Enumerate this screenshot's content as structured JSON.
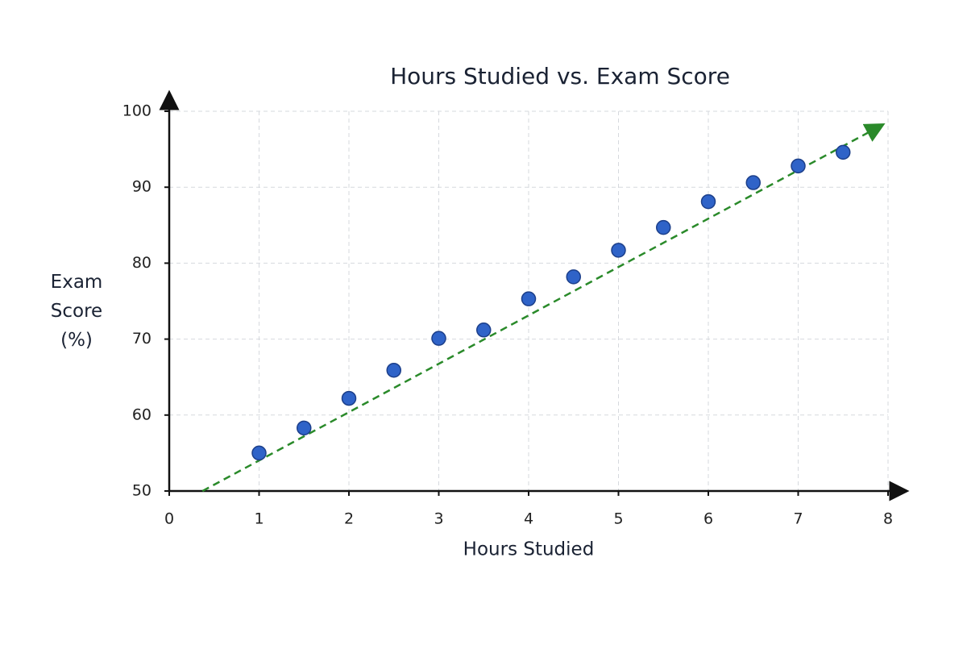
{
  "chart_data": {
    "type": "scatter",
    "title": "Hours Studied vs. Exam Score",
    "x_label": "Hours Studied",
    "y_label": "Exam Score (%)",
    "x": [
      1,
      1.5,
      2,
      2.5,
      3,
      3.5,
      4,
      4.5,
      5,
      5.5,
      6,
      6.5,
      7,
      7.5
    ],
    "values": [
      55.0,
      58.3,
      62.2,
      65.9,
      70.1,
      71.2,
      75.3,
      78.2,
      81.7,
      84.7,
      88.1,
      90.6,
      92.8,
      94.6
    ],
    "color": "#2f63c8",
    "trendline": {
      "x": [
        0.37,
        7.89
      ],
      "values": [
        50,
        97.9
      ],
      "color": "#2a8a2a"
    },
    "xlim": [
      0,
      8
    ],
    "ylim": [
      50,
      100
    ],
    "xticks": [
      0,
      1,
      2,
      3,
      4,
      5,
      6,
      7,
      8
    ],
    "yticks": [
      50,
      60,
      70,
      80,
      90,
      100
    ],
    "grid": true
  }
}
